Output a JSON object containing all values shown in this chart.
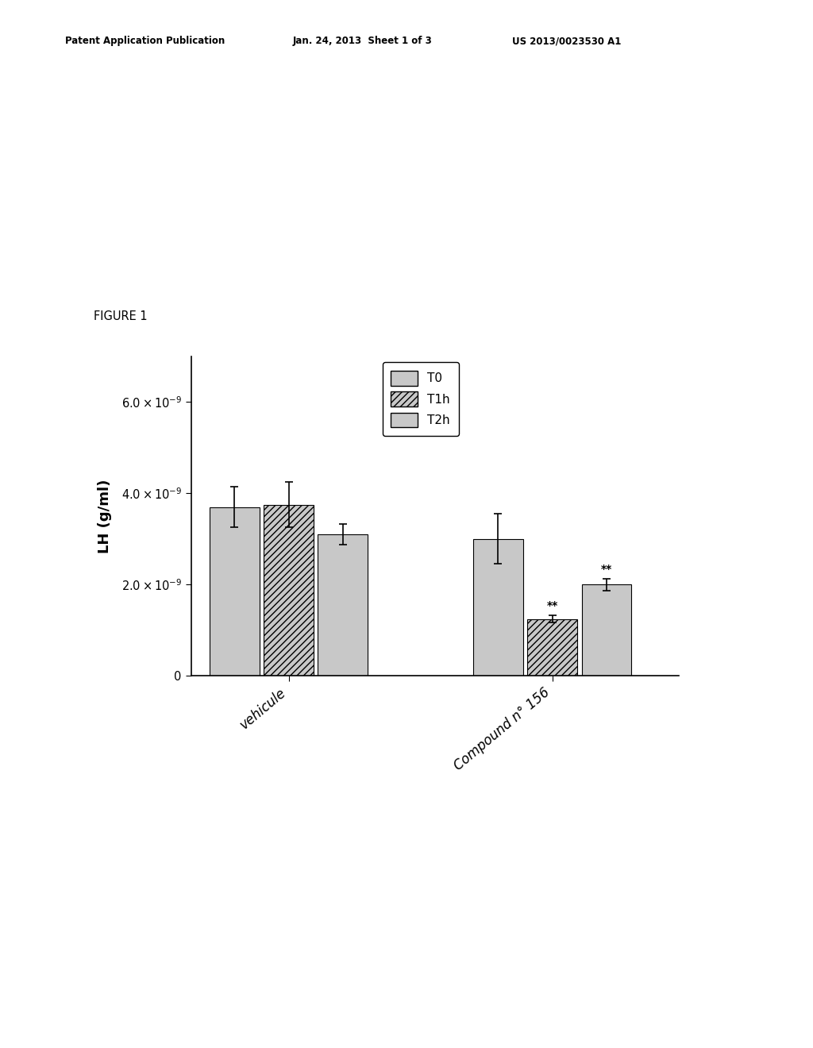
{
  "groups": [
    "vehicule",
    "Compound n° 156"
  ],
  "time_points": [
    "T0",
    "T1h",
    "T2h"
  ],
  "bar_values": [
    [
      3.7e-09,
      3.75e-09,
      3.1e-09
    ],
    [
      3e-09,
      1.25e-09,
      2e-09
    ]
  ],
  "bar_errors": [
    [
      4.5e-10,
      5e-10,
      2.2e-10
    ],
    [
      5.5e-10,
      8e-11,
      1.3e-10
    ]
  ],
  "significance": [
    [
      null,
      null,
      null
    ],
    [
      null,
      "**",
      "**"
    ]
  ],
  "ylim": [
    0,
    7e-09
  ],
  "yticks": [
    0,
    2e-09,
    4e-09,
    6e-09
  ],
  "ylabel": "LH (g/ml)",
  "figure_label": "FIGURE 1",
  "header_left": "Patent Application Publication",
  "header_mid": "Jan. 24, 2013  Sheet 1 of 3",
  "header_right": "US 2013/0023530 A1",
  "background_color": "#ffffff",
  "hatch_patterns": [
    "",
    "////",
    "===="
  ],
  "bar_fill_color": "#c8c8c8",
  "bar_width": 0.15,
  "group_centers": [
    0.32,
    1.05
  ]
}
